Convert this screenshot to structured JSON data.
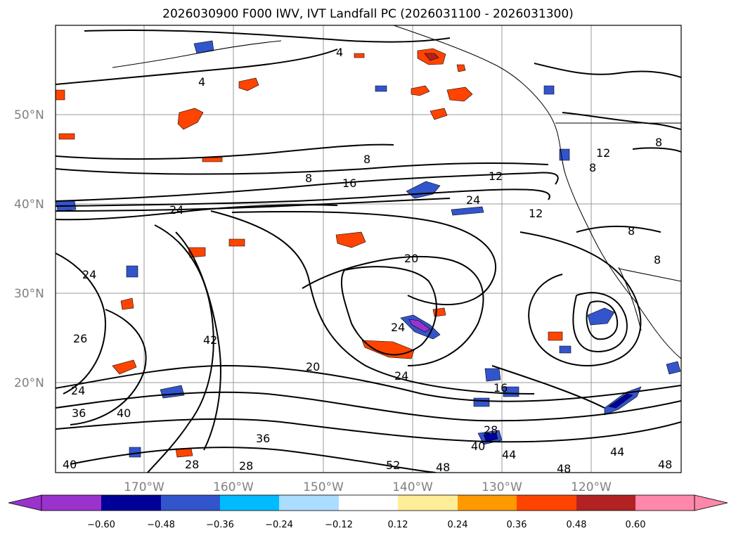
{
  "title": "2026030900 F000 IWV, IVT Landfall PC (2026031100 - 2026031300)",
  "latitude_labels": [
    "50°N",
    "40°N",
    "30°N",
    "20°N"
  ],
  "longitude_labels": [
    "170°W",
    "160°W",
    "150°W",
    "140°W",
    "130°W",
    "120°W"
  ],
  "colorbar": {
    "tick_labels": [
      "−0.60",
      "−0.48",
      "−0.36",
      "−0.24",
      "−0.12",
      "0.12",
      "0.24",
      "0.36",
      "0.48",
      "0.60"
    ],
    "colors": [
      "#9933cc",
      "#000099",
      "#3355cc",
      "#00bbff",
      "#aaddff",
      "#ffffff",
      "#ffee99",
      "#ff9900",
      "#ff4400",
      "#b22222",
      "#ff88aa"
    ]
  },
  "contour_labels": [
    "4",
    "4",
    "8",
    "8",
    "8",
    "8",
    "8",
    "8",
    "12",
    "12",
    "12",
    "16",
    "16",
    "20",
    "20",
    "24",
    "24",
    "24",
    "24",
    "24",
    "24",
    "26",
    "28",
    "28",
    "28",
    "36",
    "36",
    "40",
    "40",
    "40",
    "42",
    "44",
    "44",
    "48",
    "48",
    "48",
    "52"
  ],
  "colors": {
    "contour": "#000000",
    "grid": "#999999",
    "coast": "#000000"
  }
}
